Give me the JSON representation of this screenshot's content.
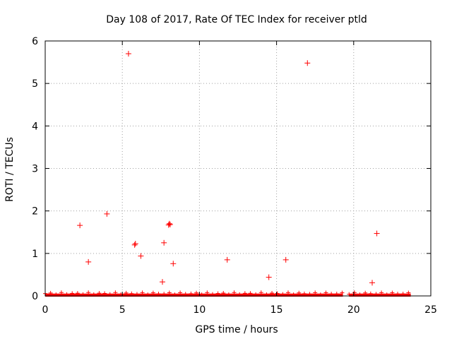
{
  "chart_data": {
    "type": "scatter",
    "title": "Day 108 of 2017, Rate Of TEC Index for receiver ptld",
    "xlabel": "GPS time / hours",
    "ylabel": "ROTI / TECUs",
    "xlim": [
      0,
      25
    ],
    "ylim": [
      0,
      6
    ],
    "xticks": [
      0,
      5,
      10,
      15,
      20,
      25
    ],
    "yticks": [
      0,
      1,
      2,
      3,
      4,
      5,
      6
    ],
    "grid": true,
    "marker": "+",
    "series": [
      {
        "name": "ROTI",
        "color": "#ff0000",
        "x": [
          2.25,
          2.8,
          4.0,
          5.4,
          5.8,
          5.85,
          6.2,
          7.6,
          7.7,
          8.0,
          8.05,
          8.1,
          8.3,
          11.8,
          14.5,
          15.6,
          17.0,
          21.2,
          21.5
        ],
        "y": [
          1.66,
          0.8,
          1.93,
          5.7,
          1.2,
          1.23,
          0.94,
          0.33,
          1.25,
          1.67,
          1.7,
          1.68,
          0.76,
          0.85,
          0.44,
          0.85,
          5.48,
          0.31,
          1.47
        ]
      }
    ],
    "baseline_band": {
      "description_of_data": "dense band of low ROTI values",
      "segments": [
        [
          0,
          19.3
        ],
        [
          19.7,
          23.7
        ]
      ],
      "y_range": [
        0,
        0.1
      ]
    }
  }
}
